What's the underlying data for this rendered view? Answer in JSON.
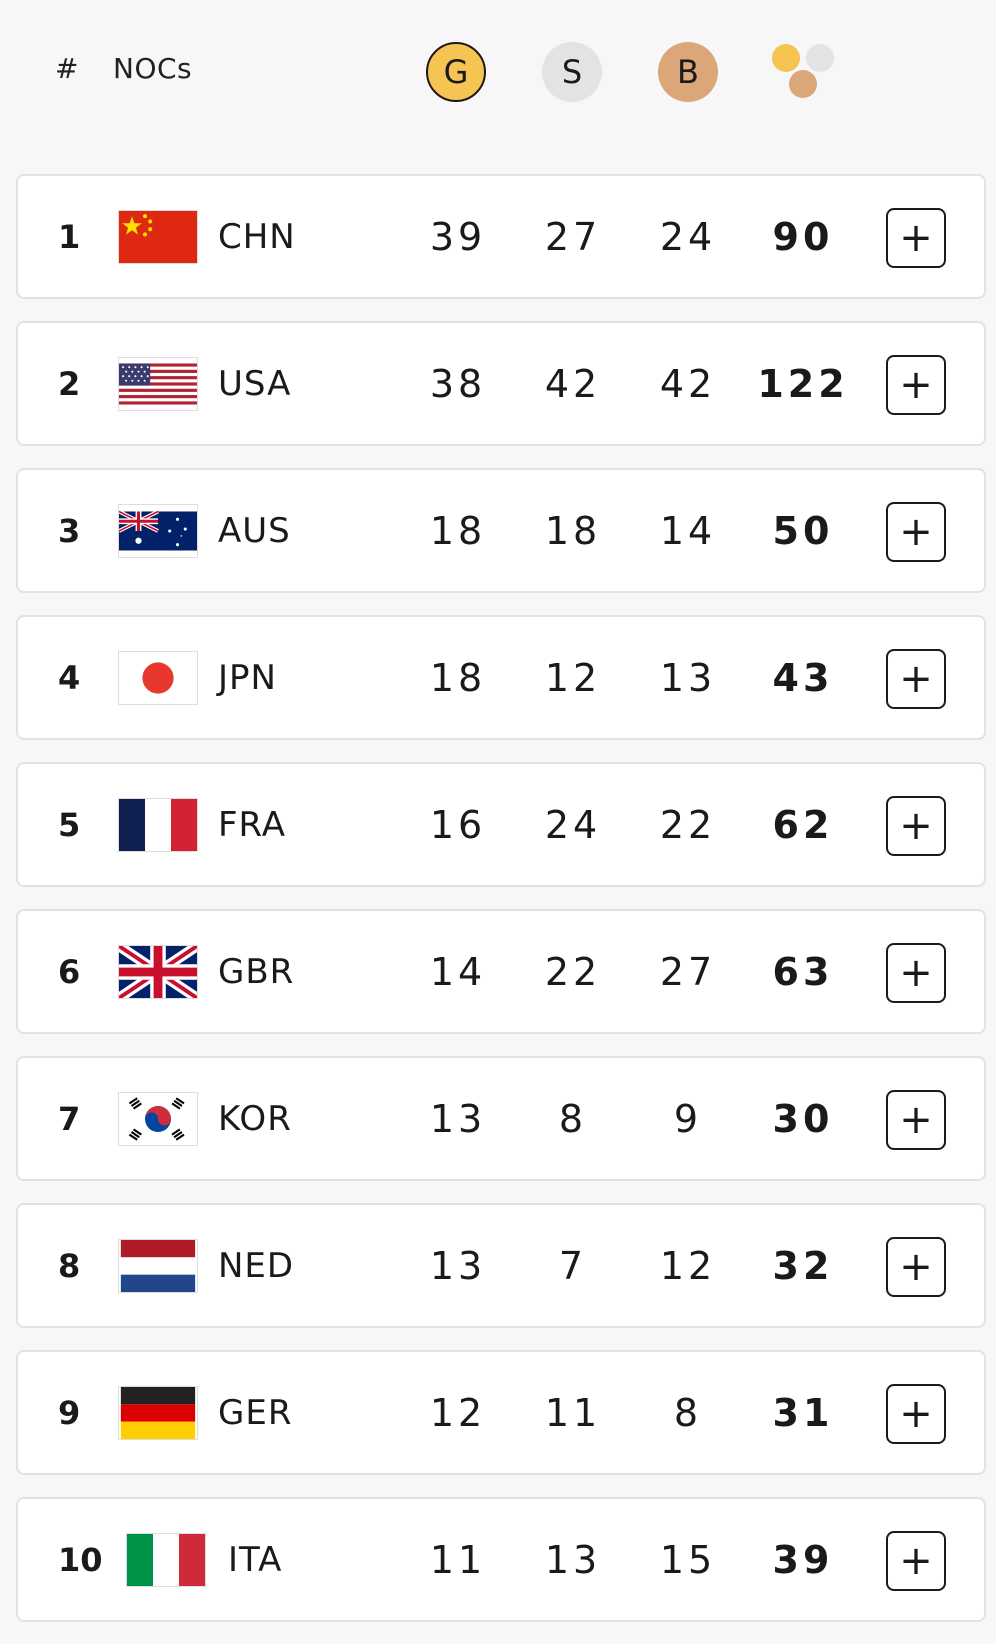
{
  "header": {
    "rank_label": "#",
    "noc_label": "NOCs",
    "gold_label": "G",
    "silver_label": "S",
    "bronze_label": "B",
    "gold_icon": "gold-medal-icon",
    "silver_icon": "silver-medal-icon",
    "bronze_icon": "bronze-medal-icon",
    "total_icon": "total-medals-icon"
  },
  "colors": {
    "gold": "#f5c452",
    "silver": "#e3e3e3",
    "bronze": "#dba779"
  },
  "expand_label": "+",
  "rows": [
    {
      "rank": "1",
      "noc": "CHN",
      "gold": "39",
      "silver": "27",
      "bronze": "24",
      "total": "90"
    },
    {
      "rank": "2",
      "noc": "USA",
      "gold": "38",
      "silver": "42",
      "bronze": "42",
      "total": "122"
    },
    {
      "rank": "3",
      "noc": "AUS",
      "gold": "18",
      "silver": "18",
      "bronze": "14",
      "total": "50"
    },
    {
      "rank": "4",
      "noc": "JPN",
      "gold": "18",
      "silver": "12",
      "bronze": "13",
      "total": "43"
    },
    {
      "rank": "5",
      "noc": "FRA",
      "gold": "16",
      "silver": "24",
      "bronze": "22",
      "total": "62"
    },
    {
      "rank": "6",
      "noc": "GBR",
      "gold": "14",
      "silver": "22",
      "bronze": "27",
      "total": "63"
    },
    {
      "rank": "7",
      "noc": "KOR",
      "gold": "13",
      "silver": "8",
      "bronze": "9",
      "total": "30"
    },
    {
      "rank": "8",
      "noc": "NED",
      "gold": "13",
      "silver": "7",
      "bronze": "12",
      "total": "32"
    },
    {
      "rank": "9",
      "noc": "GER",
      "gold": "12",
      "silver": "11",
      "bronze": "8",
      "total": "31"
    },
    {
      "rank": "10",
      "noc": "ITA",
      "gold": "11",
      "silver": "13",
      "bronze": "15",
      "total": "39"
    }
  ]
}
